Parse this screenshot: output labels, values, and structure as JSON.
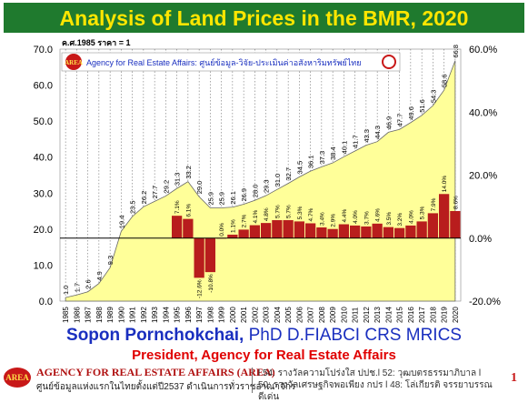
{
  "header": {
    "title": "Analysis of Land Prices in the BMR, 2020"
  },
  "colors": {
    "title_bg": "#1f7a2e",
    "title_text": "#ffe600",
    "area_fill": "#ffff99",
    "bar_fill": "#b81d1d",
    "author": "#1a2fbf",
    "position": "#e00000"
  },
  "chart_data": {
    "type": "area",
    "unit_note": "ค.ศ.1985 ราคา = 1",
    "banner": "Agency for Real Estate Affairs: ศูนย์ข้อมูล-วิจัย-ประเมินค่าอสังหาริมทรัพย์ไทย",
    "logo_text": "AREA",
    "categories": [
      "1985",
      "1986",
      "1987",
      "1988",
      "1989",
      "1990",
      "1991",
      "1992",
      "1993",
      "1994",
      "1995",
      "1996",
      "1997",
      "1998",
      "1999",
      "2000",
      "2001",
      "2002",
      "2003",
      "2004",
      "2005",
      "2006",
      "2007",
      "2008",
      "2009",
      "2010",
      "2011",
      "2012",
      "2013",
      "2014",
      "2015",
      "2016",
      "2017",
      "2018",
      "2019",
      "2020"
    ],
    "index_labels": [
      "1.0",
      "1.7",
      "2.6",
      "4.9",
      "9.3",
      "19.4",
      "23.5",
      "26.2",
      "27.7",
      "29.2",
      "31.3",
      "33.2",
      "29.0",
      "25.9",
      "25.9",
      "26.1",
      "26.9",
      "28.0",
      "29.3",
      "31.0",
      "32.7",
      "34.5",
      "36.1",
      "37.3",
      "38.4",
      "40.1",
      "41.7",
      "43.3",
      "44.3",
      "46.9",
      "47.7",
      "49.6",
      "51.6",
      "54.3",
      "58.6",
      "66.8"
    ],
    "growth_labels": [
      "",
      "",
      "",
      "",
      "",
      "",
      "",
      "",
      "",
      "",
      "7.1%",
      "6.1%",
      "-12.6%",
      "-10.8%",
      "0.0%",
      "1.1%",
      "2.7%",
      "4.1%",
      "4.8%",
      "5.7%",
      "5.7%",
      "5.3%",
      "4.7%",
      "3.4%",
      "2.9%",
      "4.4%",
      "4.0%",
      "3.7%",
      "4.6%",
      "3.5%",
      "3.2%",
      "4.0%",
      "5.3%",
      "7.9%",
      "14.0%",
      "8.6%"
    ],
    "growth_values": [
      null,
      null,
      null,
      null,
      null,
      null,
      null,
      null,
      null,
      null,
      7.1,
      6.1,
      -12.6,
      -10.8,
      0.0,
      1.1,
      2.7,
      4.1,
      4.8,
      5.7,
      5.7,
      5.3,
      4.7,
      3.4,
      2.9,
      4.4,
      4.0,
      3.7,
      4.6,
      3.5,
      3.2,
      4.0,
      5.3,
      7.9,
      14.0,
      8.6
    ],
    "left_axis": {
      "ylim": [
        0,
        70
      ],
      "ticks": [
        "0.0",
        "10.0",
        "20.0",
        "30.0",
        "40.0",
        "50.0",
        "60.0",
        "70.0"
      ]
    },
    "right_axis": {
      "ylim": [
        -20,
        60
      ],
      "ticks": [
        "-20.0%",
        "0.0%",
        "20.0%",
        "40.0%",
        "60.0%"
      ]
    }
  },
  "author": {
    "name": "Sopon Pornchokchai,",
    "credentials": " PhD D.FIABCI CRS MRICS"
  },
  "position": {
    "text": "President, Agency for Real Estate Affairs"
  },
  "footer": {
    "logo_text": "AREA",
    "agency_en": "AGENCY FOR REAL ESTATE AFFAIRS (AREA)",
    "agency_th": "ศูนย์ข้อมูลแห่งแรกในไทยตั้งแต่ปี2537 ดำเนินการทั่วราชอาณาจักร",
    "notes": "l 54: รางวัลความโปร่งใส ปปช.l 52: วุฒบตรธรรมาภิบาล l 50: รางวัลเศรษฐกิจพอเพียง กปร l 48: โล่เกียรติ จรรยาบรรณดีเด่น",
    "page_number": "1"
  }
}
